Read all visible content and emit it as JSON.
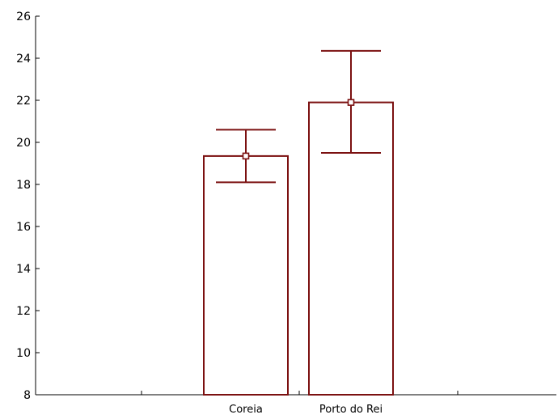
{
  "chart_data": {
    "type": "bar",
    "categories": [
      "Coreia",
      "Porto do Rei"
    ],
    "values": [
      19.35,
      21.9
    ],
    "error_bars": [
      {
        "low": 18.1,
        "high": 20.6
      },
      {
        "low": 19.5,
        "high": 24.35
      }
    ],
    "title": "",
    "xlabel": "",
    "ylabel": "",
    "ylim": [
      8,
      26
    ],
    "yticks": [
      "8",
      "10",
      "12",
      "14",
      "16",
      "18",
      "20",
      "22",
      "24",
      "26"
    ],
    "grid": false,
    "legend": "none",
    "bar_color": "#7b1010",
    "bar_fill": "#ffffff",
    "axis_color": "#000000"
  }
}
